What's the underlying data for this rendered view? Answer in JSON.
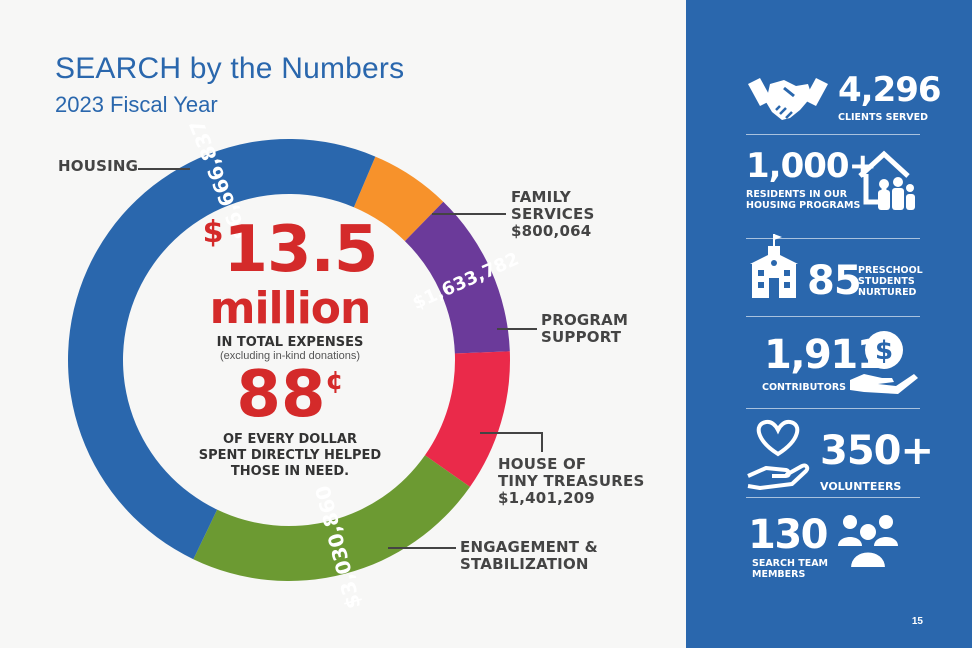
{
  "header": {
    "title": "SEARCH by the Numbers",
    "subtitle": "2023 Fiscal Year"
  },
  "chart_data": {
    "type": "pie",
    "variant": "donut",
    "slices": [
      {
        "label": "HOUSING",
        "value": 6666837,
        "value_label": "$6,666,837",
        "color": "#2a67ad"
      },
      {
        "label": "FAMILY SERVICES",
        "value": 800064,
        "value_label": "$800,064",
        "color": "#f7922b"
      },
      {
        "label": "PROGRAM SUPPORT",
        "value": 1633782,
        "value_label": "$1,633,782",
        "color": "#6b3a9a"
      },
      {
        "label": "HOUSE OF TINY TREASURES",
        "value": 1401209,
        "value_label": "$1,401,209",
        "color": "#ea2a4a"
      },
      {
        "label": "ENGAGEMENT & STABILIZATION",
        "value": 3030860,
        "value_label": "$3,030,860",
        "color": "#6c9a32"
      }
    ]
  },
  "labels": {
    "housing": "HOUSING",
    "family_1": "FAMILY",
    "family_2": "SERVICES",
    "family_val": "$800,064",
    "program_1": "PROGRAM",
    "program_2": "SUPPORT",
    "hott_1": "HOUSE OF",
    "hott_2": "TINY TREASURES",
    "hott_val": "$1,401,209",
    "eng_1": "ENGAGEMENT &",
    "eng_2": "STABILIZATION"
  },
  "center": {
    "dollar_sign": "$",
    "amount": "13.5",
    "unit": "million",
    "caption": "IN TOTAL EXPENSES",
    "note": "(excluding in-kind donations)",
    "cents": "88",
    "cent_sign": "¢",
    "sentence_1": "OF EVERY DOLLAR",
    "sentence_2": "SPENT DIRECTLY HELPED",
    "sentence_3": "THOSE IN NEED."
  },
  "stats": {
    "clients": {
      "number": "4,296",
      "label": "CLIENTS SERVED",
      "icon": "handshake-icon"
    },
    "residents": {
      "number": "1,000+",
      "label_1": "RESIDENTS IN OUR",
      "label_2": "HOUSING PROGRAMS",
      "icon": "house-family-icon"
    },
    "preschool": {
      "number": "85",
      "label_1": "PRESCHOOL",
      "label_2": "STUDENTS",
      "label_3": "NURTURED",
      "icon": "schoolhouse-icon"
    },
    "contributors": {
      "number": "1,911",
      "label": "CONTRIBUTORS",
      "icon": "hand-dollar-icon"
    },
    "volunteers": {
      "number": "350+",
      "label": "VOLUNTEERS",
      "icon": "hand-heart-icon"
    },
    "team": {
      "number": "130",
      "label_1": "SEARCH TEAM",
      "label_2": "MEMBERS",
      "icon": "people-group-icon"
    }
  },
  "page_number": "15"
}
